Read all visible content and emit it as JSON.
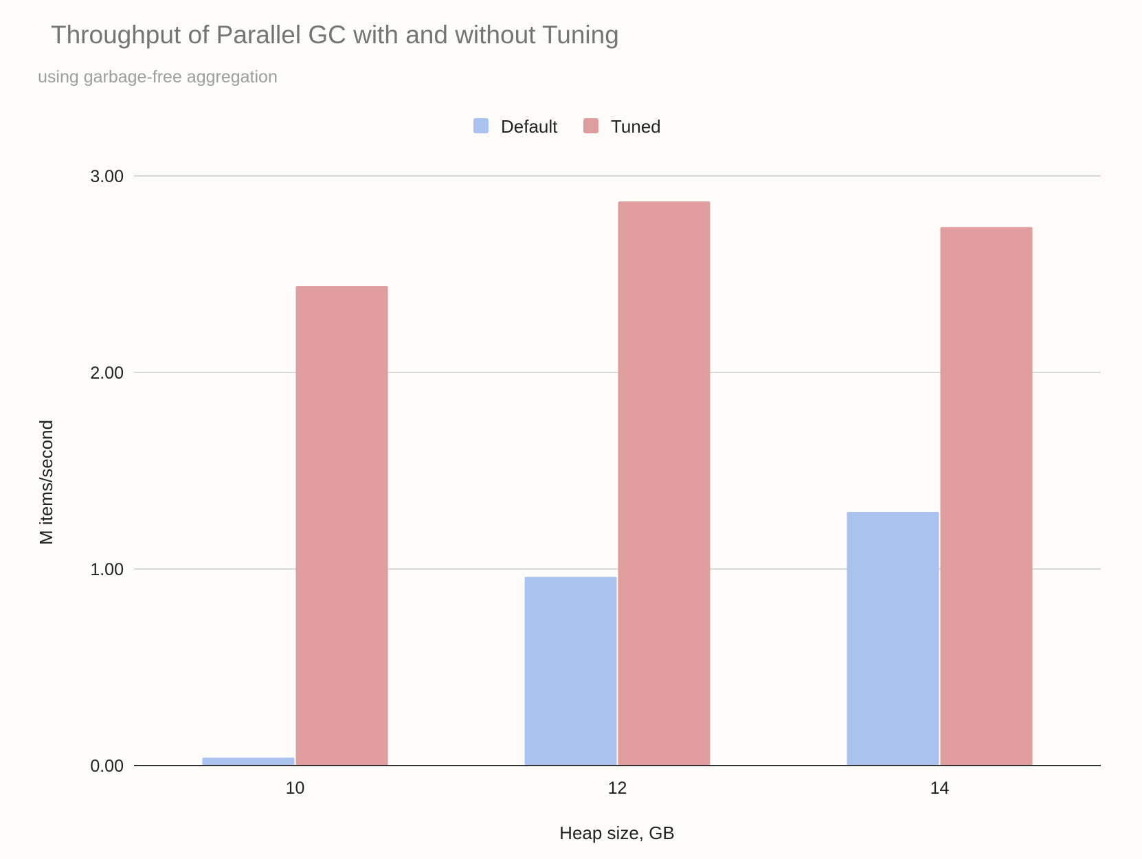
{
  "chart_data": {
    "type": "bar",
    "title": "Throughput of Parallel GC with and without Tuning",
    "subtitle": "using garbage-free aggregation",
    "xlabel": "Heap size, GB",
    "ylabel": "M items/second",
    "categories": [
      "10",
      "12",
      "14"
    ],
    "series": [
      {
        "name": "Default",
        "color": "#aac2f0",
        "values": [
          0.04,
          0.96,
          1.29
        ]
      },
      {
        "name": "Tuned",
        "color": "#df9d9d",
        "values": [
          2.44,
          2.87,
          2.74
        ]
      }
    ],
    "ylim": [
      0,
      3
    ],
    "yticks": [
      "0.00",
      "1.00",
      "2.00",
      "3.00"
    ],
    "grid": true,
    "legend_position": "top-center"
  }
}
